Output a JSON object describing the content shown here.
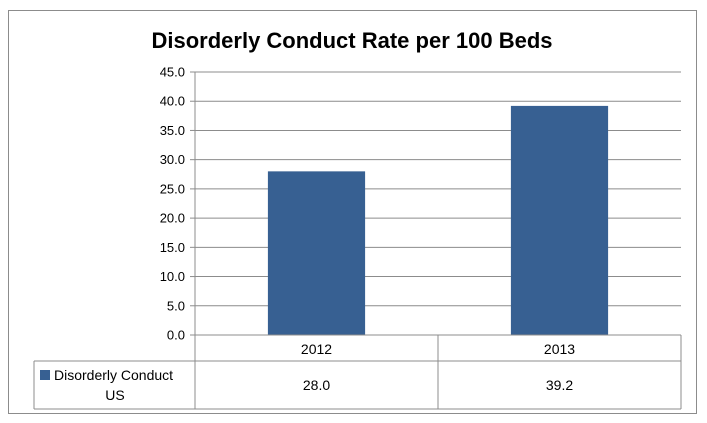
{
  "chart_data": {
    "type": "bar",
    "title": "Disorderly Conduct Rate per 100 Beds",
    "categories": [
      "2012",
      "2013"
    ],
    "series": [
      {
        "name": "Disorderly Conduct US",
        "values": [
          28.0,
          39.2
        ],
        "color": "#376092"
      }
    ],
    "data_table": {
      "row_label": [
        "Disorderly Conduct",
        "US"
      ],
      "cells": [
        "28.0",
        "39.2"
      ]
    },
    "yticks": [
      "0.0",
      "5.0",
      "10.0",
      "15.0",
      "20.0",
      "25.0",
      "30.0",
      "35.0",
      "40.0",
      "45.0"
    ],
    "ylim": [
      0,
      45
    ],
    "xlabel": "",
    "ylabel": "",
    "grid": true,
    "legend": "data-table"
  }
}
